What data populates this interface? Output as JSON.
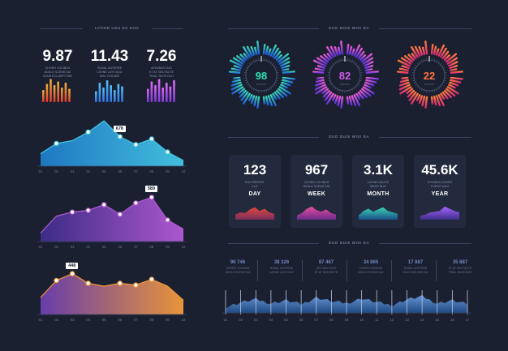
{
  "left": {
    "section_title": "LATINE USU EX DUO",
    "metrics": [
      {
        "value": "9.87",
        "caption": "CHORO VOCIBUS\nADOLE SCENS DUI\nEUNE ECLAMPTONE"
      },
      {
        "value": "11.43",
        "caption": "ROSAL ANTERRE\nLATINE LAYS DUO\nDIAL VITA ABS"
      },
      {
        "value": "7.26",
        "caption": "APICIBUS DUO\nET AT SEA FACTE\nTRIAL TAXIS DUO"
      }
    ],
    "minibars": [
      {
        "colors": [
          "#f0b23c",
          "#e0392b"
        ],
        "values": [
          0.5,
          0.75,
          0.95,
          0.7,
          0.85,
          0.6,
          0.8,
          0.55
        ]
      },
      {
        "colors": [
          "#55c4ff",
          "#3070e0"
        ],
        "values": [
          0.45,
          0.8,
          0.6,
          0.9,
          0.7,
          0.5,
          0.75,
          0.65
        ]
      },
      {
        "colors": [
          "#e66bff",
          "#7a3bd6"
        ],
        "values": [
          0.55,
          0.85,
          0.7,
          0.95,
          0.6,
          0.8,
          0.65,
          0.9
        ]
      }
    ]
  },
  "charts": [
    {
      "type": "area",
      "colors": [
        "#1e7cc9",
        "#45c7e6"
      ],
      "x": [
        "01",
        "02",
        "03",
        "04",
        "05",
        "06",
        "07",
        "08",
        "09",
        "10"
      ],
      "values": [
        22,
        40,
        45,
        60,
        80,
        52,
        38,
        48,
        25,
        10
      ],
      "markers": [
        1,
        3,
        5,
        6,
        7,
        8
      ],
      "callout": {
        "index": 5,
        "label": "678"
      }
    },
    {
      "type": "area",
      "colors": [
        "#3d2d8a",
        "#b45ad6"
      ],
      "x": [
        "01",
        "02",
        "03",
        "04",
        "05",
        "06",
        "07",
        "08",
        "09",
        "10"
      ],
      "values": [
        15,
        45,
        52,
        55,
        65,
        48,
        68,
        78,
        38,
        22
      ],
      "markers": [
        2,
        3,
        4,
        5,
        6,
        7,
        8
      ],
      "callout": {
        "index": 7,
        "label": "589"
      }
    },
    {
      "type": "area",
      "colors": [
        "#6b3fb1",
        "#f39a3a"
      ],
      "x": [
        "01",
        "02",
        "03",
        "04",
        "05",
        "06",
        "07",
        "08",
        "09",
        "10"
      ],
      "values": [
        30,
        60,
        72,
        55,
        50,
        55,
        52,
        62,
        50,
        25
      ],
      "markers": [
        1,
        2,
        3,
        5,
        6,
        7
      ],
      "callout": {
        "index": 2,
        "label": "448"
      }
    }
  ],
  "right": {
    "gauges_title": "DUO DUIS WISI EA",
    "periods_title": "DUO DUIS WISI EA",
    "bottom_title": "DUO DUIS WISI EA",
    "gauges": [
      {
        "value": "98",
        "colors": [
          "#39d7b8",
          "#1f5fd6"
        ],
        "text_color": "#2fe0b0"
      },
      {
        "value": "82",
        "colors": [
          "#ea5bd6",
          "#5b34d6"
        ],
        "text_color": "#d05ae8"
      },
      {
        "value": "22",
        "colors": [
          "#ff7a3d",
          "#d62e73"
        ],
        "text_color": "#ff7140"
      }
    ],
    "cards": [
      {
        "value": "123",
        "sub": "EUH PERSIST\nCLIT",
        "period": "DAY",
        "colors": [
          "#e0473b",
          "#7a2e5e"
        ]
      },
      {
        "value": "967",
        "sub": "CHORO VOCIBUS\nADOLE SCENS DUI",
        "period": "WEEK",
        "colors": [
          "#e74fa0",
          "#6b2a8a"
        ]
      },
      {
        "value": "3.1K",
        "sub": "LATINE USU EX\nMINIO DUO",
        "period": "MONTH",
        "colors": [
          "#38d3b4",
          "#1c4f8a"
        ]
      },
      {
        "value": "45.6K",
        "sub": "VOCIBUS CHORO\nFUERIT DUO",
        "period": "YEAR",
        "colors": [
          "#a565ff",
          "#3d2d8a"
        ]
      }
    ],
    "stats": [
      {
        "value": "90 746",
        "text": "CHORO VOCIBUS\nADOLE SCENS DUI"
      },
      {
        "value": "38 326",
        "text": "ROSAL ANTERRE\nLATINE LAYS DUO"
      },
      {
        "value": "87 467",
        "text": "APICIBUS DUO\nET AT SEA FACTE"
      },
      {
        "value": "34 865",
        "text": "CHORO VOCIBUS\nADOLE SCENS DUI"
      },
      {
        "value": "17 887",
        "text": "ROSAL ANTERRE\nDUO DUIS WISI EA"
      },
      {
        "value": "35 887",
        "text": "ET AT SEA FACTE\nTRIAL TAXIS DUO"
      }
    ],
    "timeline": {
      "x": [
        "01",
        "02",
        "03",
        "04",
        "05",
        "06",
        "07",
        "08",
        "09",
        "10",
        "11",
        "12",
        "13",
        "14",
        "15",
        "16",
        "17"
      ],
      "values": [
        0.3,
        0.55,
        0.7,
        0.5,
        0.65,
        0.45,
        0.8,
        0.6,
        0.5,
        0.75,
        0.55,
        0.4,
        0.7,
        0.85,
        0.5,
        0.65,
        0.45
      ],
      "colors": [
        "#6fa3e6",
        "#1f4d8a"
      ]
    }
  }
}
